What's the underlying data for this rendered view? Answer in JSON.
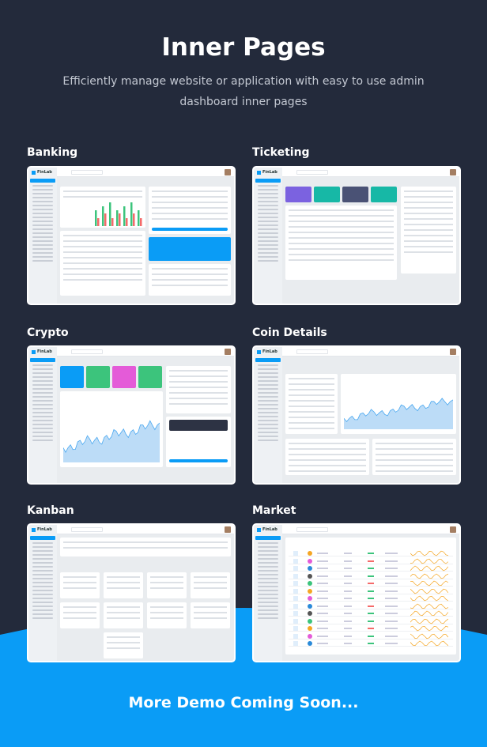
{
  "header": {
    "title": "Inner Pages",
    "subtitle": "Efficiently manage website or application with easy to use admin dashboard inner pages"
  },
  "brand": "FinLab",
  "colors": {
    "background": "#232a3b",
    "accent": "#0a9cf6"
  },
  "pages": [
    {
      "label": "Banking"
    },
    {
      "label": "Ticketing"
    },
    {
      "label": "Crypto"
    },
    {
      "label": "Coin Details"
    },
    {
      "label": "Kanban"
    },
    {
      "label": "Market"
    }
  ],
  "footer": {
    "text": "More Demo Coming Soon..."
  }
}
